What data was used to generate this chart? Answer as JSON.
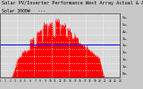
{
  "title_line1": "Solar PV/Inverter Performance West Array Actual & Average Power Output",
  "title_line2": "Solar 3000W   ---",
  "bg_color": "#c8c8c8",
  "plot_bg_color": "#d8d8d8",
  "bar_color": "#ff0000",
  "avg_line_color": "#0000ff",
  "avg_value": 0.52,
  "ylim": [
    0,
    1.0
  ],
  "xlim": [
    0,
    288
  ],
  "title_fontsize": 4.2,
  "tick_fontsize": 3.0,
  "right_axis_labels": [
    "5w.",
    "5w.",
    "4w.",
    "3w.",
    "3w.",
    "2w.",
    "1w.",
    "1w.",
    "0w."
  ],
  "right_axis_positions": [
    0.94,
    0.83,
    0.72,
    0.61,
    0.5,
    0.39,
    0.28,
    0.17,
    0.06
  ],
  "n_vgrid": 7,
  "n_hgrid": 9,
  "peak_seed": 42
}
